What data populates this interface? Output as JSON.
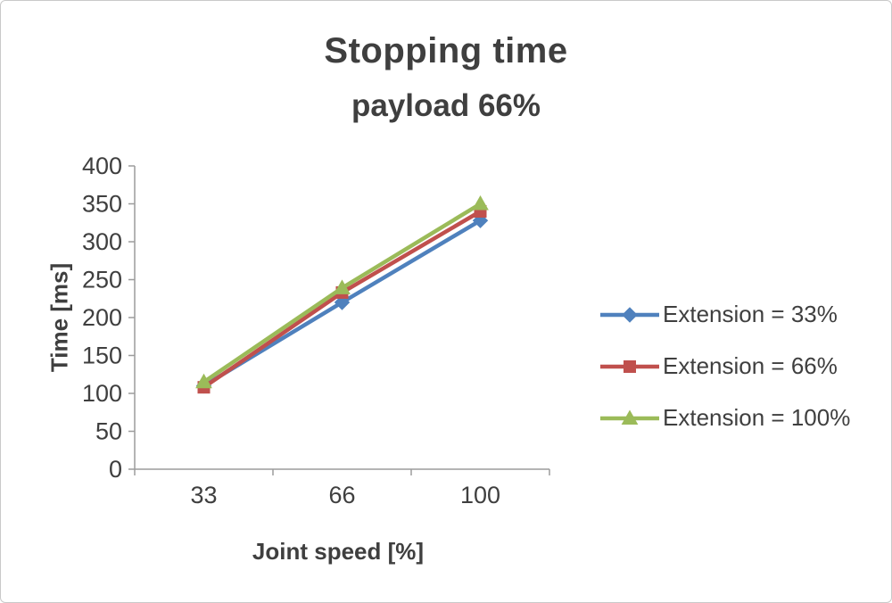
{
  "chart_data": {
    "type": "line",
    "title": "Stopping time",
    "subtitle": "payload 66%",
    "xlabel": "Joint speed [%]",
    "ylabel": "Time [ms]",
    "categories": [
      "33",
      "66",
      "100"
    ],
    "series": [
      {
        "name": "Extension = 33%",
        "marker": "diamond",
        "color": "#4f81bd",
        "values": [
          110,
          220,
          328
        ]
      },
      {
        "name": "Extension = 66%",
        "marker": "square",
        "color": "#c0504d",
        "values": [
          108,
          233,
          340
        ]
      },
      {
        "name": "Extension = 100%",
        "marker": "triangle",
        "color": "#9bbb59",
        "values": [
          115,
          239,
          350
        ]
      }
    ],
    "ylim": [
      0,
      400
    ],
    "ytick_step": 50,
    "grid": false,
    "legend_position": "right",
    "axis_color": "#9c9c9c",
    "text_color": "#3f3f3f"
  }
}
